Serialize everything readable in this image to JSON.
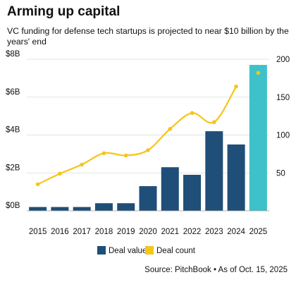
{
  "chart_data": {
    "type": "bar",
    "title": "Arming up capital",
    "subtitle": "VC funding for defense tech startups is projected to near $10 billion by the years' end",
    "categories": [
      "2015",
      "2016",
      "2017",
      "2018",
      "2019",
      "2020",
      "2021",
      "2022",
      "2023",
      "2024",
      "2025"
    ],
    "series": [
      {
        "name": "Deal value",
        "type": "bar",
        "axis": "left",
        "values": [
          0.2,
          0.2,
          0.2,
          0.4,
          0.4,
          1.3,
          2.3,
          1.9,
          4.2,
          3.5,
          7.7
        ],
        "colors": [
          "#1f4e79",
          "#1f4e79",
          "#1f4e79",
          "#1f4e79",
          "#1f4e79",
          "#1f4e79",
          "#1f4e79",
          "#1f4e79",
          "#1f4e79",
          "#1f4e79",
          "#3ec1c9"
        ]
      },
      {
        "name": "Deal count",
        "type": "line",
        "axis": "right",
        "values": [
          35,
          49,
          61,
          76,
          73,
          80,
          108,
          129,
          117,
          164,
          182
        ],
        "color": "#f5c518",
        "connected_count": 10
      }
    ],
    "y_left": {
      "min": 0,
      "max": 8,
      "ticks": [
        "$0B",
        "$2B",
        "$4B",
        "$6B",
        "$8B"
      ],
      "tick_values": [
        0,
        2,
        4,
        6,
        8
      ]
    },
    "y_right": {
      "min": 0,
      "max": 200,
      "ticks": [
        "50",
        "100",
        "150",
        "200"
      ],
      "tick_values": [
        50,
        100,
        150,
        200
      ]
    },
    "grid": true,
    "legend_position": "bottom",
    "source": "Source: PitchBook • As of Oct. 15, 2025",
    "colors": {
      "bar": "#1f4e79",
      "bar_projected": "#3ec1c9",
      "line": "#f5c518",
      "grid": "#d9d9d9"
    }
  }
}
